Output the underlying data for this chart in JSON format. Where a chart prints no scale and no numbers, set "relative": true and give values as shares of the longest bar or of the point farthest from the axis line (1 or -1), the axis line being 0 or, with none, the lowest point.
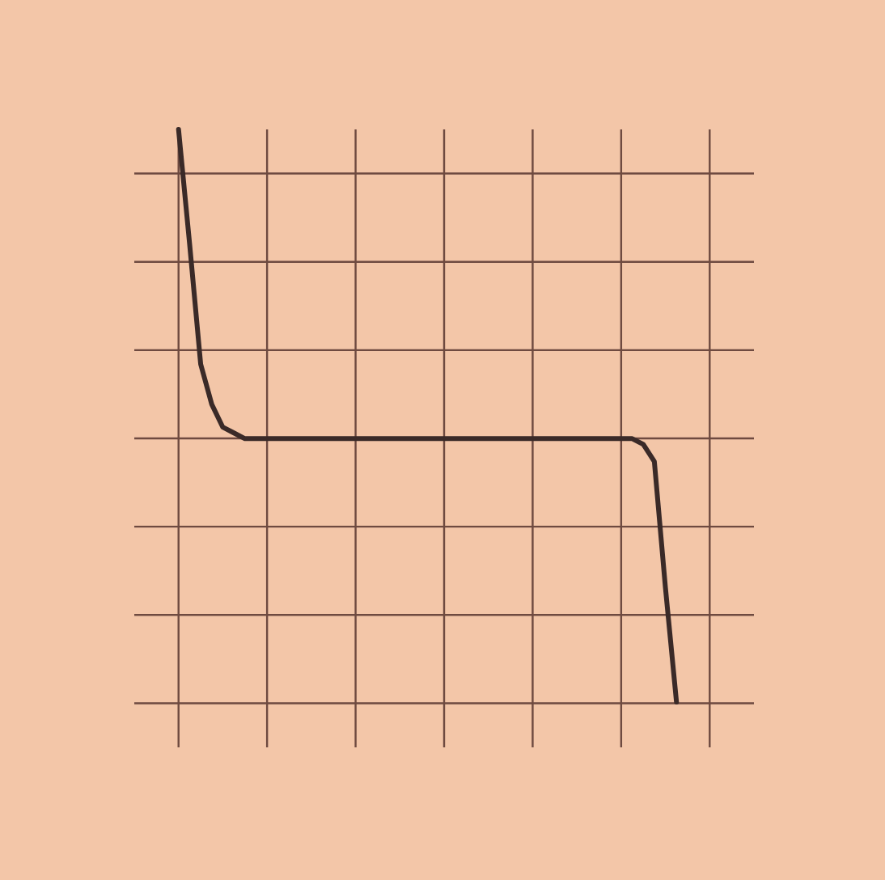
{
  "chart_data": {
    "type": "line",
    "relative": true,
    "grid": true,
    "legend": false,
    "marker": "none",
    "line_style": "solid",
    "categories": [
      null,
      null,
      null,
      null,
      null,
      null,
      null,
      null,
      null,
      null,
      null,
      null,
      null,
      null,
      null,
      null,
      null,
      null,
      null,
      null,
      null,
      null,
      null,
      null,
      null,
      null,
      null,
      null,
      null,
      null,
      null,
      null,
      null,
      null,
      null,
      null,
      null,
      null,
      null,
      null,
      null,
      null,
      null,
      null,
      null,
      null,
      null,
      null,
      null,
      null,
      null,
      null,
      null,
      null,
      null,
      null,
      null
    ],
    "series": [
      {
        "color": "#3a2a28",
        "values": [
          null,
          null,
          null,
          null,
          1.0,
          0.8,
          0.59,
          0.52,
          0.48,
          0.47,
          0.46,
          0.46,
          0.46,
          0.46,
          0.46,
          0.46,
          0.46,
          0.46,
          0.46,
          0.46,
          0.46,
          0.46,
          0.46,
          0.46,
          0.46,
          0.46,
          0.46,
          0.46,
          0.46,
          0.46,
          0.46,
          0.46,
          0.46,
          0.46,
          0.46,
          0.46,
          0.46,
          0.46,
          0.46,
          0.46,
          0.46,
          0.46,
          0.46,
          0.46,
          0.46,
          0.46,
          0.45,
          0.42,
          0.2,
          0,
          null,
          null,
          null,
          null,
          null,
          null,
          null
        ]
      }
    ]
  }
}
